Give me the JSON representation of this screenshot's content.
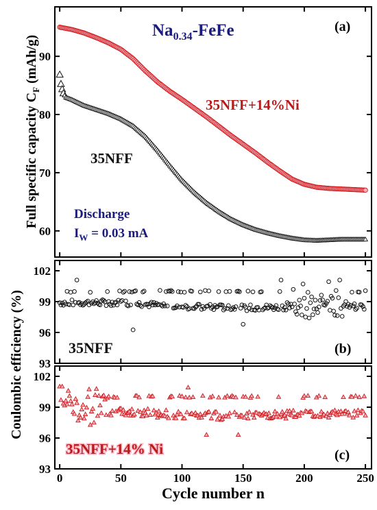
{
  "figure": {
    "xlabel": "Cycle number n",
    "colors": {
      "black_series": "#111111",
      "red_series": "#cc1a1a",
      "red_halo": "#ffb3c2",
      "title_blue": "#1a1a80",
      "annotation_red": "#b71c1c",
      "annotation_black": "#111111"
    }
  },
  "chart_data": [
    {
      "panel": "(a)",
      "type": "scatter",
      "title": "Na0.34-FeFe",
      "title_main": "Na",
      "title_sub": "0.34",
      "title_rest": "-FeFe",
      "ylabel_main": "Full specific capacity C",
      "ylabel_sub": "F",
      "ylabel_unit": " (mAh/g)",
      "xlim": [
        -4,
        255
      ],
      "ylim": [
        55.5,
        98.5
      ],
      "xticks": [
        0,
        50,
        100,
        150,
        200,
        250
      ],
      "yticks": [
        60,
        70,
        80,
        90
      ],
      "annotations": {
        "discharge": "Discharge",
        "current_main": "I",
        "current_sub": "W",
        "current_rest": " = 0.03 mA"
      },
      "series": [
        {
          "name": "35NFF+14%Ni",
          "marker": "circle",
          "points": [
            [
              0,
              95
            ],
            [
              10,
              94.6
            ],
            [
              20,
              94
            ],
            [
              30,
              93.2
            ],
            [
              40,
              92.3
            ],
            [
              50,
              91.2
            ],
            [
              60,
              89.6
            ],
            [
              70,
              87.5
            ],
            [
              80,
              85.6
            ],
            [
              90,
              84
            ],
            [
              100,
              82.6
            ],
            [
              110,
              81.1
            ],
            [
              120,
              79.6
            ],
            [
              130,
              78
            ],
            [
              140,
              76.4
            ],
            [
              150,
              74.9
            ],
            [
              160,
              73.4
            ],
            [
              170,
              71.8
            ],
            [
              180,
              70.3
            ],
            [
              190,
              68.9
            ],
            [
              200,
              68
            ],
            [
              210,
              67.5
            ],
            [
              220,
              67.3
            ],
            [
              230,
              67.2
            ],
            [
              240,
              67.1
            ],
            [
              250,
              67
            ]
          ]
        },
        {
          "name": "35NFF",
          "marker": "triangle",
          "points": [
            [
              0,
              86.8
            ],
            [
              1,
              85.2
            ],
            [
              2,
              84.3
            ],
            [
              3,
              83.6
            ],
            [
              5,
              82.9
            ],
            [
              10,
              82.5
            ],
            [
              20,
              81.5
            ],
            [
              30,
              80.8
            ],
            [
              40,
              80.1
            ],
            [
              50,
              79.2
            ],
            [
              60,
              78
            ],
            [
              70,
              76.2
            ],
            [
              80,
              73.8
            ],
            [
              90,
              71.2
            ],
            [
              100,
              68.7
            ],
            [
              110,
              66.6
            ],
            [
              120,
              64.8
            ],
            [
              130,
              63.3
            ],
            [
              140,
              62
            ],
            [
              150,
              61
            ],
            [
              160,
              60.2
            ],
            [
              170,
              59.6
            ],
            [
              180,
              59.1
            ],
            [
              190,
              58.7
            ],
            [
              200,
              58.4
            ],
            [
              210,
              58.3
            ],
            [
              220,
              58.4
            ],
            [
              230,
              58.5
            ],
            [
              240,
              58.5
            ],
            [
              250,
              58.5
            ]
          ]
        }
      ]
    },
    {
      "panel": "(b)",
      "type": "scatter",
      "ylabel": "Coulombic efficiency (%)",
      "ylim": [
        93,
        103
      ],
      "yticks": [
        93,
        96,
        99,
        102
      ],
      "series": [
        {
          "name": "35NFF",
          "marker": "circle",
          "mean_trend": [
            [
              0,
              98.9
            ],
            [
              50,
              98.9
            ],
            [
              100,
              98.5
            ],
            [
              150,
              98.4
            ],
            [
              200,
              98.5
            ],
            [
              250,
              98.5
            ]
          ],
          "upper_level": 100
        }
      ]
    },
    {
      "panel": "(c)",
      "type": "scatter",
      "ylim": [
        93,
        103
      ],
      "yticks": [
        93,
        96,
        99,
        102
      ],
      "series": [
        {
          "name": "35NFF+14% Ni",
          "marker": "triangle",
          "mean_trend": [
            [
              0,
              100
            ],
            [
              20,
              98.3
            ],
            [
              50,
              98.6
            ],
            [
              100,
              98.2
            ],
            [
              150,
              98.1
            ],
            [
              200,
              98.3
            ],
            [
              250,
              98.4
            ]
          ],
          "upper_level": 100
        }
      ]
    }
  ]
}
